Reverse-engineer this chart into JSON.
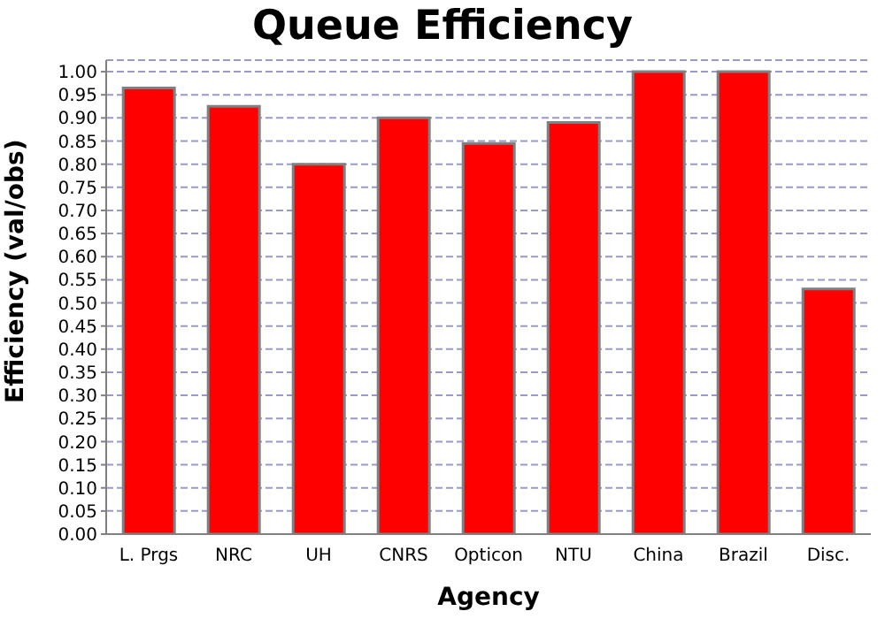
{
  "chart_data": {
    "type": "bar",
    "title": "Queue Efficiency",
    "xlabel": "Agency",
    "ylabel": "Efficiency (val/obs)",
    "categories": [
      "L. Prgs",
      "NRC",
      "UH",
      "CNRS",
      "Opticon",
      "NTU",
      "China",
      "Brazil",
      "Disc."
    ],
    "values": [
      0.965,
      0.925,
      0.8,
      0.9,
      0.845,
      0.89,
      1.0,
      1.0,
      0.53
    ],
    "color": "#ff0000",
    "ylim": [
      0,
      1.025
    ],
    "yticks": [
      {
        "value": 0,
        "label": "0.00"
      },
      0.05,
      {
        "value": 0.1,
        "label": "0.10"
      },
      0.15,
      {
        "value": 0.2,
        "label": "0.20"
      },
      0.25,
      {
        "value": 0.3,
        "label": "0.30"
      },
      0.35,
      {
        "value": 0.4,
        "label": "0.40"
      },
      0.45,
      {
        "value": 0.5,
        "label": "0.50"
      },
      0.55,
      {
        "value": 0.6,
        "label": "0.60"
      },
      0.65,
      {
        "value": 0.7,
        "label": "0.70"
      },
      0.75,
      {
        "value": 0.8,
        "label": "0.80"
      },
      0.85,
      {
        "value": 0.9,
        "label": "0.90"
      },
      0.95,
      {
        "value": 1.0,
        "label": "1.00"
      }
    ],
    "grid": "y"
  }
}
